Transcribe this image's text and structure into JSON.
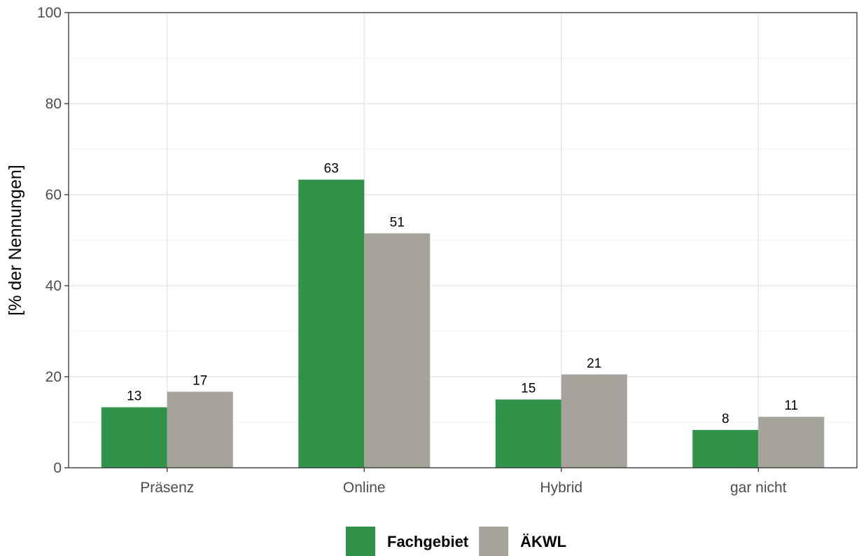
{
  "chart_data": {
    "type": "bar",
    "categories": [
      "Präsenz",
      "Online",
      "Hybrid",
      "gar nicht"
    ],
    "series": [
      {
        "name": "Fachgebiet",
        "color": "#31924a",
        "values": [
          13.3,
          63.3,
          15.0,
          8.3
        ],
        "labels": [
          "13",
          "63",
          "15",
          "8"
        ]
      },
      {
        "name": "ÄKWL",
        "color": "#a6a29c",
        "values": [
          16.7,
          51.5,
          20.5,
          11.2
        ],
        "labels": [
          "17",
          "51",
          "21",
          "11"
        ]
      }
    ],
    "ylabel": "[% der Nennungen]",
    "xlabel": "",
    "ylim": [
      0,
      100
    ],
    "yticks": [
      0,
      20,
      40,
      60,
      80,
      100
    ],
    "grid": true,
    "legend_position": "bottom"
  }
}
